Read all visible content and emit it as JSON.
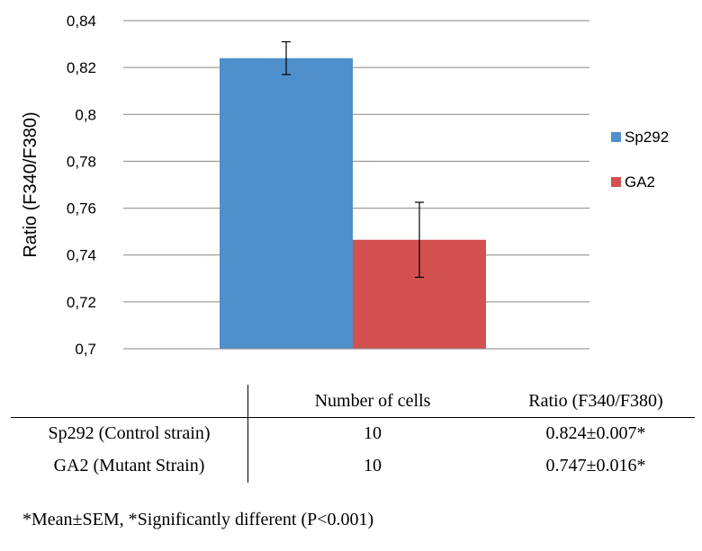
{
  "chart_data": {
    "type": "bar",
    "title": "",
    "xlabel": "",
    "ylabel": "Ratio (F340/F380)",
    "ylim": [
      0.7,
      0.84
    ],
    "yticks": [
      "0,7",
      "0,72",
      "0,74",
      "0,76",
      "0,78",
      "0,8",
      "0,82",
      "0,84"
    ],
    "ytick_values": [
      0.7,
      0.72,
      0.74,
      0.76,
      0.78,
      0.8,
      0.82,
      0.84
    ],
    "grid": true,
    "legend_position": "right",
    "series": [
      {
        "name": "Sp292",
        "values": [
          0.824
        ],
        "error": [
          0.007
        ],
        "color": "#4f8fcc"
      },
      {
        "name": "GA2",
        "values": [
          0.7465
        ],
        "error": [
          0.016
        ],
        "color": "#d25050"
      }
    ]
  },
  "table": {
    "headers": [
      "",
      "Number of cells",
      "Ratio (F340/F380)"
    ],
    "rows": [
      {
        "label": "Sp292 (Control strain)",
        "cells": "10",
        "ratio": "0.824±0.007*"
      },
      {
        "label": "GA2 (Mutant Strain)",
        "cells": "10",
        "ratio": "0.747±0.016*"
      }
    ]
  },
  "footnote": "*Mean±SEM, *Significantly different (P<0.001)"
}
